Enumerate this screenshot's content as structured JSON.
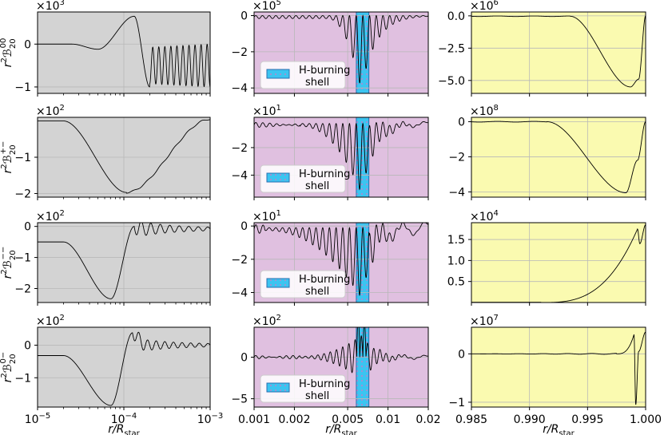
{
  "figure": {
    "xlabel": "r/R",
    "xlabel_sub": "star"
  },
  "legend": {
    "line1": "H-burning",
    "line2": "shell"
  },
  "rows": [
    {
      "label": {
        "pre": "r",
        "sup": "2",
        "main": "ℬ",
        "sub": "20",
        "sup2": "00"
      }
    },
    {
      "label": {
        "pre": "r",
        "sup": "2",
        "main": "ℬ",
        "sub": "20",
        "sup2": "+−"
      }
    },
    {
      "label": {
        "pre": "r",
        "sup": "2",
        "main": "ℬ",
        "sub": "20",
        "sup2": "−−"
      }
    },
    {
      "label": {
        "pre": "r",
        "sup": "2",
        "main": "ℬ",
        "sub": "20",
        "sup2": "0−"
      }
    }
  ],
  "columns": [
    {
      "bg": "#d3d3d3",
      "xscale": "log",
      "xlim": [
        1e-05,
        0.001
      ],
      "xticks": [
        {
          "v": 1e-05,
          "base": "10",
          "exp": "−5"
        },
        {
          "v": 0.0001,
          "base": "10",
          "exp": "−4"
        },
        {
          "v": 0.001,
          "base": "10",
          "exp": "−3"
        }
      ]
    },
    {
      "bg": "#e0c0e0",
      "xscale": "log",
      "xlim": [
        0.001,
        0.02
      ],
      "shell": [
        0.0058,
        0.0072
      ],
      "xticks": [
        {
          "v": 0.001,
          "label": "0.001"
        },
        {
          "v": 0.002,
          "label": "0.002"
        },
        {
          "v": 0.005,
          "label": "0.005"
        },
        {
          "v": 0.01,
          "label": "0.01"
        },
        {
          "v": 0.02,
          "label": "0.02"
        }
      ]
    },
    {
      "bg": "#fafab0",
      "xscale": "linear",
      "xlim": [
        0.985,
        1.0
      ],
      "xticks": [
        {
          "v": 0.985,
          "label": "0.985"
        },
        {
          "v": 0.99,
          "label": "0.990"
        },
        {
          "v": 0.995,
          "label": "0.995"
        },
        {
          "v": 1.0,
          "label": "1.000"
        }
      ]
    }
  ],
  "chart_data": [
    {
      "type": "line",
      "row": 0,
      "col": 0,
      "exponent": "3",
      "ylim": [
        -1.15,
        0.75
      ],
      "yticks": [
        {
          "v": 0,
          "label": "0"
        },
        {
          "v": -1,
          "label": "−1"
        }
      ],
      "curve": "osc-rise",
      "params": {
        "base": 0,
        "dip": -0.12,
        "dipAt": -4.3,
        "peak": 0.65,
        "peakAt": -3.88,
        "trough": -1.0,
        "troughAt": -3.7,
        "oscStart": -3.7,
        "oscCenter": -0.15,
        "oscAmp": [
          0.85,
          1.0
        ],
        "oscCycles": 10
      }
    },
    {
      "type": "line",
      "row": 0,
      "col": 1,
      "exponent": "5",
      "ylim": [
        -4.3,
        0.2
      ],
      "yticks": [
        {
          "v": 0,
          "label": "0"
        },
        {
          "v": -2,
          "label": "−2"
        },
        {
          "v": -4,
          "label": "−4"
        }
      ],
      "curve": "shell-spike",
      "params": {
        "base": 0.0,
        "min": -4.1,
        "minAt": 0.0063,
        "oscAmp": 0.35,
        "oscCycles": 26,
        "rampFrom": 0.0035
      }
    },
    {
      "type": "line",
      "row": 0,
      "col": 2,
      "exponent": "6",
      "ylim": [
        -6.0,
        0.3
      ],
      "yticks": [
        {
          "v": 0,
          "label": "0.0"
        },
        {
          "v": -2.5,
          "label": "−2.5"
        },
        {
          "v": -5,
          "label": "−5.0"
        }
      ],
      "curve": "surface-dip",
      "params": {
        "base": -0.03,
        "min": -5.5,
        "minAt": 0.9987,
        "dropStart": 0.9935,
        "end": 0.0,
        "bumpAt": 0.9994,
        "bump": -4.9
      }
    },
    {
      "type": "line",
      "row": 1,
      "col": 0,
      "exponent": "2",
      "ylim": [
        -2.1,
        0.1
      ],
      "yticks": [
        {
          "v": -1,
          "label": "−1"
        },
        {
          "v": -2,
          "label": "−2"
        }
      ],
      "curve": "smooth-dip",
      "params": {
        "base": 0.0,
        "flatEnd": -4.7,
        "min": -1.97,
        "minAt": -3.97,
        "end": 0.05,
        "endAt": -3.0,
        "wiggle": 0.02
      }
    },
    {
      "type": "line",
      "row": 1,
      "col": 1,
      "exponent": "1",
      "ylim": [
        -5.6,
        0.2
      ],
      "yticks": [
        {
          "v": -2,
          "label": "−2"
        },
        {
          "v": -4,
          "label": "−4"
        }
      ],
      "curve": "shell-spike",
      "params": {
        "base": -0.25,
        "min": -5.3,
        "minAt": 0.0063,
        "oscAmp": 1.3,
        "oscCycles": 26,
        "rampFrom": 0.0022,
        "tailWiggle": 0.15
      }
    },
    {
      "type": "line",
      "row": 1,
      "col": 2,
      "exponent": "8",
      "ylim": [
        -4.3,
        0.25
      ],
      "yticks": [
        {
          "v": 0,
          "label": "0"
        },
        {
          "v": -2,
          "label": "−2"
        },
        {
          "v": -4,
          "label": "−4"
        }
      ],
      "curve": "surface-dip",
      "params": {
        "base": 0.0,
        "min": -4.05,
        "minAt": 0.9983,
        "dropStart": 0.9915,
        "end": 0.0,
        "bumpAt": 0.9993,
        "bump": -2.2
      }
    },
    {
      "type": "line",
      "row": 2,
      "col": 0,
      "exponent": "2",
      "ylim": [
        -2.45,
        0.12
      ],
      "yticks": [
        {
          "v": 0,
          "label": "0"
        },
        {
          "v": -1,
          "label": "−1"
        },
        {
          "v": -2,
          "label": "−2"
        }
      ],
      "curve": "dip-osc",
      "params": {
        "base": -0.5,
        "flatEnd": -4.7,
        "min": -2.33,
        "minAt": -4.15,
        "peak": 0.0,
        "peakAt": -3.88,
        "oscCenter": -0.08,
        "oscAmp": 0.25,
        "oscCycles": 8
      }
    },
    {
      "type": "line",
      "row": 2,
      "col": 1,
      "exponent": "1",
      "ylim": [
        -4.6,
        0.2
      ],
      "yticks": [
        {
          "v": 0,
          "label": "0"
        },
        {
          "v": -2,
          "label": "−2"
        },
        {
          "v": -4,
          "label": "−4"
        }
      ],
      "curve": "shell-spike",
      "params": {
        "base": -0.1,
        "min": -4.3,
        "minAt": 0.0063,
        "oscAmp": 1.4,
        "oscCycles": 26,
        "rampFrom": 0.0012,
        "tailWiggle": 0.35
      }
    },
    {
      "type": "line",
      "row": 2,
      "col": 2,
      "exponent": "4",
      "ylim": [
        0.0,
        1.9
      ],
      "yticks": [
        {
          "v": 0.5,
          "label": "0.5"
        },
        {
          "v": 1.0,
          "label": "1.0"
        },
        {
          "v": 1.5,
          "label": "1.5"
        }
      ],
      "curve": "surface-rise",
      "params": {
        "base": 0.0,
        "riseStart": 0.991,
        "peak": 1.75,
        "peakAt": 0.9993,
        "dip": 1.4,
        "dipAt": 0.9995,
        "end": 1.85
      }
    },
    {
      "type": "line",
      "row": 3,
      "col": 0,
      "exponent": "2",
      "ylim": [
        -1.9,
        0.55
      ],
      "yticks": [
        {
          "v": 0,
          "label": "0"
        },
        {
          "v": -1,
          "label": "−1"
        }
      ],
      "curve": "dip-osc",
      "params": {
        "base": -0.32,
        "flatEnd": -4.7,
        "min": -1.85,
        "minAt": -4.15,
        "peak": 0.38,
        "peakAt": -3.9,
        "oscCenter": 0.0,
        "oscAmp": 0.2,
        "oscCycles": 9
      }
    },
    {
      "type": "line",
      "row": 3,
      "col": 1,
      "exponent": "2",
      "ylim": [
        -6.0,
        3.6
      ],
      "yticks": [
        {
          "v": 0,
          "label": "0"
        },
        {
          "v": -5,
          "label": "−5"
        }
      ],
      "curve": "shell-spike",
      "params": {
        "base": 0.0,
        "min": -5.6,
        "minAt": 0.0063,
        "max": 2.6,
        "oscAmp": 2.6,
        "oscCycles": 28,
        "rampFrom": 0.0022,
        "symmetric": true,
        "tailWiggle": 0.2
      }
    },
    {
      "type": "line",
      "row": 3,
      "col": 2,
      "exponent": "7",
      "ylim": [
        -1.1,
        0.55
      ],
      "yticks": [
        {
          "v": 0,
          "label": "0"
        },
        {
          "v": -1,
          "label": "−1"
        }
      ],
      "curve": "surface-spike",
      "params": {
        "base": 0.0,
        "spikeUp": 0.4,
        "spikeUpAt": 0.999,
        "spikeDown": -1.05,
        "spikeDownAt": 0.99915,
        "end": 0.45
      }
    }
  ]
}
